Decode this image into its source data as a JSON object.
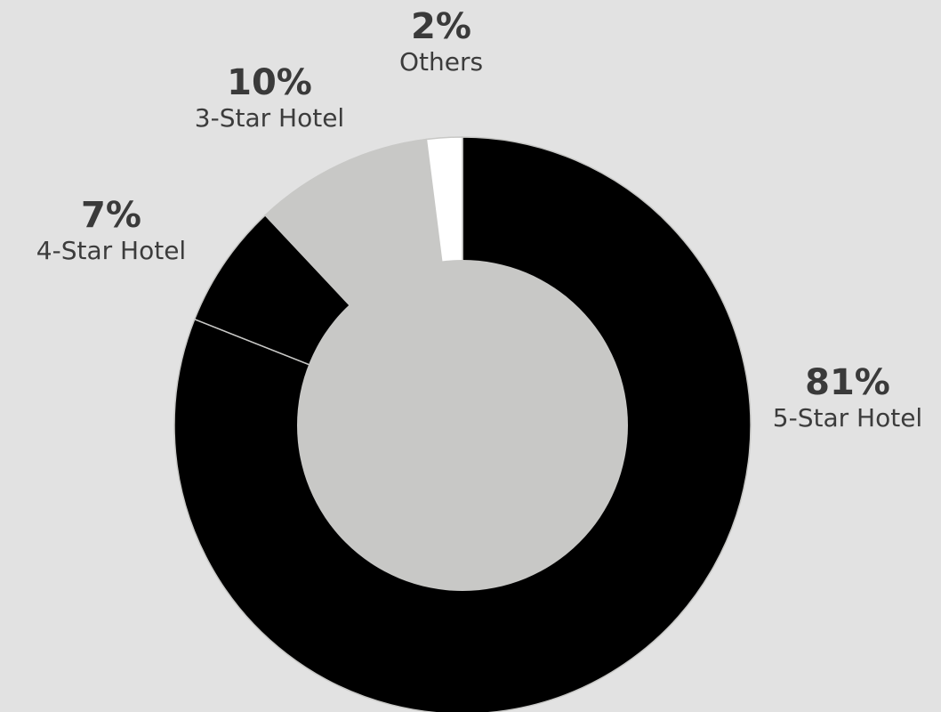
{
  "chart_data": {
    "type": "pie",
    "variant": "donut",
    "slices": [
      {
        "label": "5-Star Hotel",
        "value": 81,
        "value_label": "81%",
        "color": "#000000"
      },
      {
        "label": "4-Star Hotel",
        "value": 7,
        "value_label": "7%",
        "color": "#000000"
      },
      {
        "label": "3-Star Hotel",
        "value": 10,
        "value_label": "10%",
        "color": "#c8c8c6"
      },
      {
        "label": "Others",
        "value": 2,
        "value_label": "2%",
        "color": "#ffffff"
      }
    ],
    "center_color": "#c8c8c6",
    "background": "#e2e2e2"
  }
}
